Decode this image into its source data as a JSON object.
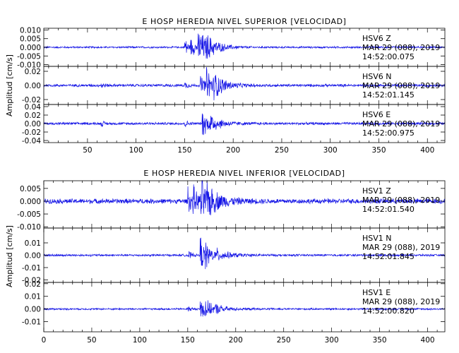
{
  "colors": {
    "trace": "#1414e6",
    "axis": "#000000",
    "background": "#ffffff"
  },
  "chart_data": [
    {
      "type": "line",
      "title": "E HOSP HEREDIA NIVEL SUPERIOR [VELOCIDAD]",
      "ylabel": "Amplitud [cm/s]",
      "xlim": [
        5,
        418
      ],
      "xticks": [
        50,
        100,
        150,
        200,
        250,
        300,
        350,
        400
      ],
      "xtick_labels": [
        "50",
        "100",
        "150",
        "200",
        "250",
        "300",
        "350",
        "400"
      ],
      "grid": false,
      "series": [
        {
          "station": "HSV6",
          "channel": "Z",
          "date": "MAR 29 (088), 2019",
          "start_time": "14:52:00.075",
          "ylim": [
            -0.011,
            0.011
          ],
          "yticks": [
            0.01,
            0.005,
            0.0,
            -0.005,
            -0.01
          ],
          "ytick_labels": [
            "0.010",
            "0.005",
            "0.000",
            "-0.005",
            "-0.010"
          ],
          "noise_amplitude": 0.0006,
          "events": [
            {
              "t": 150,
              "amp": 0.0105,
              "decay": 2.5
            },
            {
              "t": 156,
              "amp": 0.006,
              "decay": 8
            },
            {
              "t": 164,
              "amp": 0.011,
              "decay": 10
            },
            {
              "t": 172,
              "amp": 0.004,
              "decay": 14
            }
          ]
        },
        {
          "station": "HSV6",
          "channel": "N",
          "date": "MAR 29 (088), 2019",
          "start_time": "14:52:01.145",
          "ylim": [
            -0.027,
            0.027
          ],
          "yticks": [
            0.02,
            0.0,
            -0.02
          ],
          "ytick_labels": [
            "0.02",
            "0.00",
            "-0.02"
          ],
          "noise_amplitude": 0.0022,
          "events": [
            {
              "t": 64,
              "amp": 0.0045,
              "decay": 3
            },
            {
              "t": 150,
              "amp": 0.006,
              "decay": 3
            },
            {
              "t": 166,
              "amp": 0.016,
              "decay": 7
            },
            {
              "t": 172,
              "amp": 0.024,
              "decay": 9
            },
            {
              "t": 180,
              "amp": 0.012,
              "decay": 12
            }
          ]
        },
        {
          "station": "HSV6",
          "channel": "E",
          "date": "MAR 29 (088), 2019",
          "start_time": "14:52:00.975",
          "ylim": [
            -0.045,
            0.045
          ],
          "yticks": [
            0.04,
            0.02,
            0.0,
            -0.02,
            -0.04
          ],
          "ytick_labels": [
            "0.04",
            "0.02",
            "0.00",
            "-0.02",
            "-0.04"
          ],
          "noise_amplitude": 0.0035,
          "events": [
            {
              "t": 64,
              "amp": 0.007,
              "decay": 3
            },
            {
              "t": 150,
              "amp": 0.009,
              "decay": 3
            },
            {
              "t": 168,
              "amp": 0.038,
              "decay": 7
            },
            {
              "t": 176,
              "amp": 0.018,
              "decay": 12
            }
          ]
        }
      ]
    },
    {
      "type": "line",
      "title": "E HOSP HEREDIA NIVEL INFERIOR [VELOCIDAD]",
      "ylabel": "Amplitud [cm/s]",
      "xlim": [
        0,
        418
      ],
      "xticks": [
        0,
        50,
        100,
        150,
        200,
        250,
        300,
        350,
        400
      ],
      "xtick_labels": [
        "0",
        "50",
        "100",
        "150",
        "200",
        "250",
        "300",
        "350",
        "400"
      ],
      "grid": false,
      "series": [
        {
          "station": "HSV1",
          "channel": "Z",
          "date": "MAR 29 (088), 2019",
          "start_time": "14:52:01.540",
          "ylim": [
            -0.0105,
            0.008
          ],
          "yticks": [
            0.005,
            0.0,
            -0.005,
            -0.01
          ],
          "ytick_labels": [
            "0.005",
            "0.000",
            "-0.005",
            "-0.010"
          ],
          "noise_amplitude": 0.0011,
          "events": [
            {
              "t": 150,
              "amp": 0.008,
              "decay": 3
            },
            {
              "t": 155,
              "amp": 0.006,
              "decay": 6
            },
            {
              "t": 163,
              "amp": 0.0105,
              "decay": 8
            },
            {
              "t": 170,
              "amp": 0.004,
              "decay": 16
            }
          ]
        },
        {
          "station": "HSV1",
          "channel": "N",
          "date": "MAR 29 (088), 2019",
          "start_time": "14:52:01.845",
          "ylim": [
            -0.022,
            0.022
          ],
          "yticks": [
            0.01,
            0.0,
            -0.01,
            -0.02
          ],
          "ytick_labels": [
            "0.01",
            "0.00",
            "-0.01",
            "-0.02"
          ],
          "noise_amplitude": 0.001,
          "events": [
            {
              "t": 150,
              "amp": 0.005,
              "decay": 3
            },
            {
              "t": 163,
              "amp": 0.02,
              "decay": 4
            },
            {
              "t": 168,
              "amp": 0.009,
              "decay": 10
            },
            {
              "t": 180,
              "amp": 0.003,
              "decay": 16
            }
          ]
        },
        {
          "station": "HSV1",
          "channel": "E",
          "date": "MAR 29 (088), 2019",
          "start_time": "14:52:00.820",
          "ylim": [
            -0.018,
            0.021
          ],
          "yticks": [
            0.02,
            0.01,
            0.0,
            -0.01
          ],
          "ytick_labels": [
            "0.02",
            "0.01",
            "0.00",
            "-0.01"
          ],
          "noise_amplitude": 0.0008,
          "events": [
            {
              "t": 150,
              "amp": 0.003,
              "decay": 3
            },
            {
              "t": 163,
              "amp": 0.017,
              "decay": 3
            },
            {
              "t": 167,
              "amp": 0.009,
              "decay": 8
            },
            {
              "t": 178,
              "amp": 0.003,
              "decay": 14
            }
          ]
        }
      ]
    }
  ]
}
